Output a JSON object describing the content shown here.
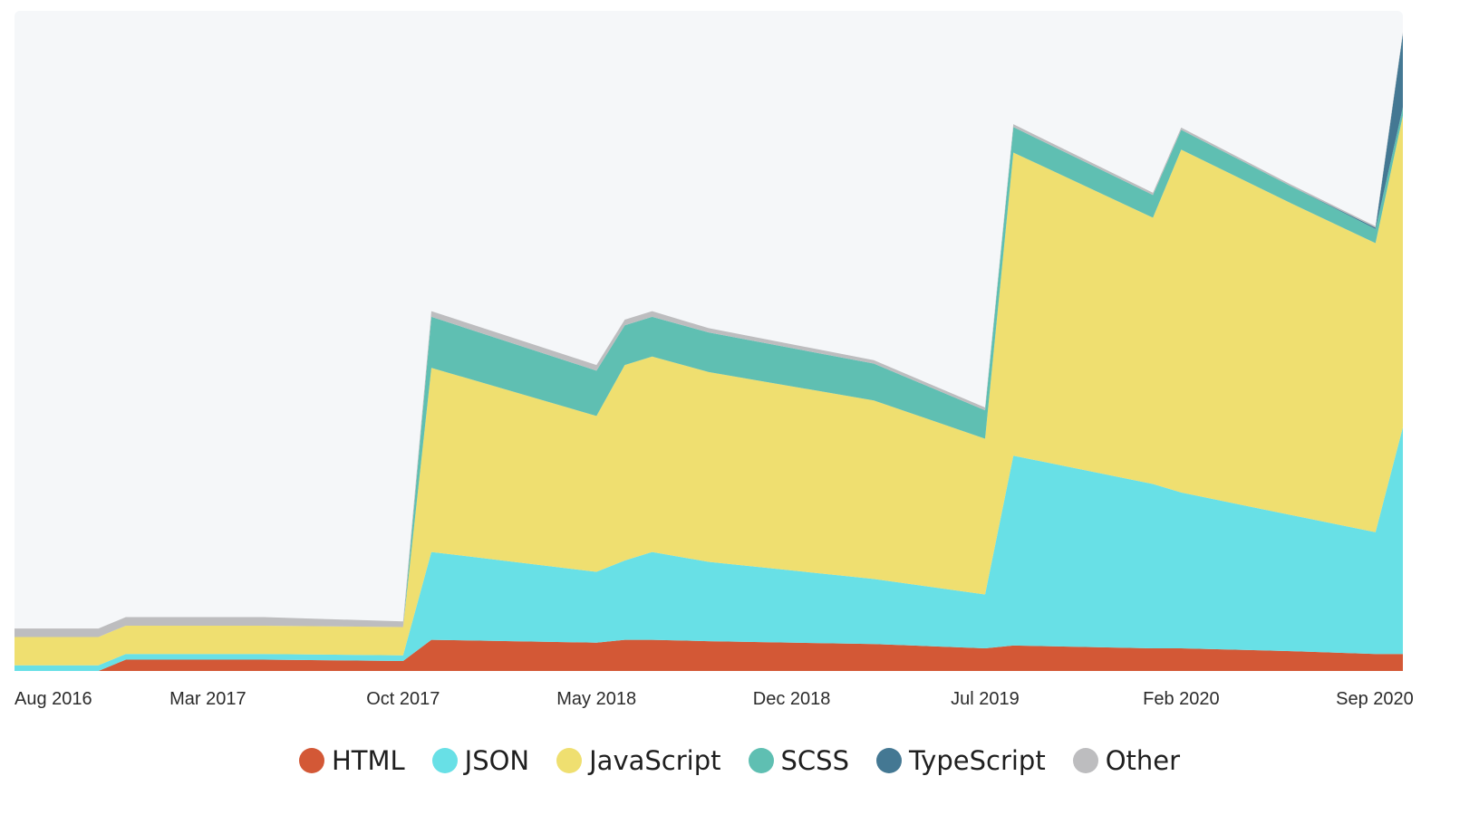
{
  "chart_data": {
    "type": "area",
    "stacked": true,
    "x_labels": [
      "Aug 2016",
      "Mar 2017",
      "Oct 2017",
      "May 2018",
      "Dec 2018",
      "Jul 2019",
      "Feb 2020",
      "Sep 2020"
    ],
    "x": [
      "2016-08-01",
      "2016-11-01",
      "2016-12-01",
      "2017-05-01",
      "2017-10-01",
      "2017-11-01",
      "2018-05-01",
      "2018-06-01",
      "2018-07-01",
      "2018-09-01",
      "2019-03-01",
      "2019-07-01",
      "2019-08-01",
      "2020-01-01",
      "2020-02-01",
      "2020-06-01",
      "2020-09-01",
      "2020-10-01"
    ],
    "series": [
      {
        "name": "HTML",
        "color": "#d35836",
        "values": [
          0,
          0,
          0.4,
          0.4,
          0.35,
          1.1,
          1.0,
          1.1,
          1.1,
          1.05,
          0.95,
          0.8,
          0.9,
          0.8,
          0.8,
          0.7,
          0.6,
          0.6
        ]
      },
      {
        "name": "JSON",
        "color": "#68e0e6",
        "values": [
          0.2,
          0.2,
          0.2,
          0.2,
          0.2,
          3.1,
          2.5,
          2.8,
          3.1,
          2.8,
          2.3,
          1.9,
          6.7,
          5.8,
          5.5,
          4.8,
          4.3,
          8.0
        ]
      },
      {
        "name": "JavaScript",
        "color": "#efdf70",
        "values": [
          1.0,
          1.0,
          1.0,
          1.0,
          1.0,
          6.5,
          5.5,
          6.9,
          6.9,
          6.7,
          6.3,
          5.5,
          10.7,
          9.4,
          12.1,
          11.0,
          10.2,
          11.0
        ]
      },
      {
        "name": "SCSS",
        "color": "#5fbfb2",
        "values": [
          0,
          0,
          0,
          0,
          0,
          1.8,
          1.6,
          1.4,
          1.4,
          1.4,
          1.3,
          1.0,
          0.9,
          0.8,
          0.7,
          0.6,
          0.5,
          0.3
        ]
      },
      {
        "name": "TypeScript",
        "color": "#447893",
        "values": [
          0,
          0,
          0,
          0,
          0,
          0,
          0,
          0,
          0,
          0,
          0,
          0,
          0,
          0,
          0,
          0,
          0.05,
          2.6
        ]
      },
      {
        "name": "Other",
        "color": "#bdbdbf",
        "values": [
          0.3,
          0.3,
          0.3,
          0.3,
          0.2,
          0.2,
          0.2,
          0.2,
          0.2,
          0.15,
          0.12,
          0.1,
          0.1,
          0.08,
          0.08,
          0.06,
          0.05,
          0.05
        ]
      }
    ],
    "ylim": [
      0,
      23.3
    ],
    "y_axis_visible": false,
    "grid": false,
    "background_color": "#f5f7f9",
    "legend_position": "bottom-center"
  }
}
